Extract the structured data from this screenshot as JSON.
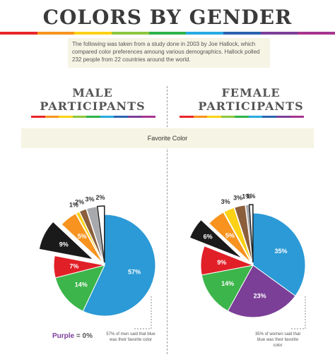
{
  "title": "COLORS BY GENDER",
  "intro": "The following was taken from a study done in 2003 by Joe Hallock, which compared color preferences amoung various demographics. Hallock polled 232 people from 22 countries around the world.",
  "rainbow_colors": [
    "#e8262a",
    "#f7941d",
    "#fcd116",
    "#8dc63f",
    "#2eb34a",
    "#27aae1",
    "#2b63b0",
    "#7b3f98",
    "#a6358f"
  ],
  "columns": {
    "male": {
      "heading_line1": "MALE",
      "heading_line2": "PARTICIPANTS"
    },
    "female": {
      "heading_line1": "FEMALE",
      "heading_line2": "PARTICIPANTS"
    }
  },
  "section_label": "Favorite Color",
  "purple_note": {
    "label": "Purple",
    "value": "= 0%"
  },
  "male_note": "57% of men said that blue was their favorite color",
  "female_note": "35% of women said that blue was their favorite color",
  "chart_data": [
    {
      "type": "pie",
      "title": "MALE PARTICIPANTS",
      "slices": [
        {
          "name": "Blue",
          "value": 57,
          "label": "57%",
          "color": "#2b9ad6"
        },
        {
          "name": "Green",
          "value": 14,
          "label": "14%",
          "color": "#3cb54a"
        },
        {
          "name": "Red",
          "value": 7,
          "label": "7%",
          "color": "#e11f27"
        },
        {
          "name": "Black",
          "value": 9,
          "label": "9%",
          "color": "#1a1a1a",
          "exploded": true
        },
        {
          "name": "Orange",
          "value": 5,
          "label": "5%",
          "color": "#f7931e"
        },
        {
          "name": "Yellow",
          "value": 1,
          "label": "1%",
          "color": "#fcd116"
        },
        {
          "name": "Brown",
          "value": 2,
          "label": "2%",
          "color": "#8b5e3c"
        },
        {
          "name": "Gray",
          "value": 3,
          "label": "3%",
          "color": "#a7a9ac"
        },
        {
          "name": "White",
          "value": 2,
          "label": "2%",
          "color": "#ffffff"
        },
        {
          "name": "Purple",
          "value": 0,
          "label": "0%",
          "color": "#7b3f98"
        }
      ]
    },
    {
      "type": "pie",
      "title": "FEMALE PARTICIPANTS",
      "slices": [
        {
          "name": "Blue",
          "value": 35,
          "label": "35%",
          "color": "#2b9ad6"
        },
        {
          "name": "Purple",
          "value": 23,
          "label": "23%",
          "color": "#7b3f98"
        },
        {
          "name": "Green",
          "value": 14,
          "label": "14%",
          "color": "#3cb54a"
        },
        {
          "name": "Red",
          "value": 9,
          "label": "9%",
          "color": "#e11f27"
        },
        {
          "name": "Black",
          "value": 6,
          "label": "6%",
          "color": "#1a1a1a",
          "exploded": true
        },
        {
          "name": "Orange",
          "value": 5,
          "label": "5%",
          "color": "#f7931e"
        },
        {
          "name": "Yellow",
          "value": 3,
          "label": "3%",
          "color": "#fcd116"
        },
        {
          "name": "Brown",
          "value": 3,
          "label": "3%",
          "color": "#8b5e3c"
        },
        {
          "name": "Gray",
          "value": 1,
          "label": "1%",
          "color": "#a7a9ac"
        },
        {
          "name": "White",
          "value": 1,
          "label": "1%",
          "color": "#ffffff"
        }
      ]
    }
  ]
}
